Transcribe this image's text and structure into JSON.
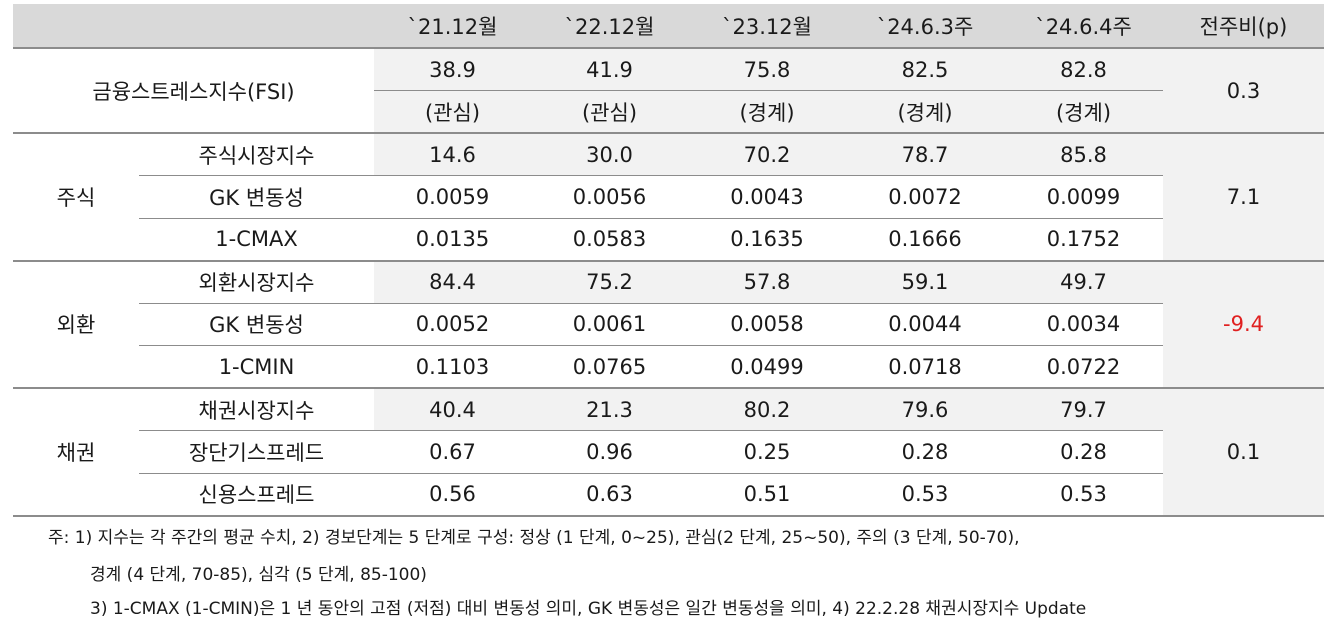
{
  "table": {
    "columns": [
      "",
      "`21.12월",
      "`22.12월",
      "`23.12월",
      "`24.6.3주",
      "`24.6.4주",
      "전주비(p)"
    ],
    "fsi": {
      "label": "금융스트레스지수(FSI)",
      "values": [
        "38.9",
        "41.9",
        "75.8",
        "82.5",
        "82.8"
      ],
      "levels": [
        "(관심)",
        "(관심)",
        "(경계)",
        "(경계)",
        "(경계)"
      ],
      "change": "0.3"
    },
    "groups": [
      {
        "name": "주식",
        "change": "7.1",
        "rows": [
          {
            "label": "주식시장지수",
            "values": [
              "14.6",
              "30.0",
              "70.2",
              "78.7",
              "85.8"
            ]
          },
          {
            "label": "GK 변동성",
            "values": [
              "0.0059",
              "0.0056",
              "0.0043",
              "0.0072",
              "0.0099"
            ]
          },
          {
            "label": "1-CMAX",
            "values": [
              "0.0135",
              "0.0583",
              "0.1635",
              "0.1666",
              "0.1752"
            ]
          }
        ]
      },
      {
        "name": "외환",
        "change": "-9.4",
        "change_color": "#e02020",
        "rows": [
          {
            "label": "외환시장지수",
            "values": [
              "84.4",
              "75.2",
              "57.8",
              "59.1",
              "49.7"
            ]
          },
          {
            "label": "GK 변동성",
            "values": [
              "0.0052",
              "0.0061",
              "0.0058",
              "0.0044",
              "0.0034"
            ]
          },
          {
            "label": "1-CMIN",
            "values": [
              "0.1103",
              "0.0765",
              "0.0499",
              "0.0718",
              "0.0722"
            ]
          }
        ]
      },
      {
        "name": "채권",
        "change": "0.1",
        "rows": [
          {
            "label": "채권시장지수",
            "values": [
              "40.4",
              "21.3",
              "80.2",
              "79.6",
              "79.7"
            ]
          },
          {
            "label": "장단기스프레드",
            "values": [
              "0.67",
              "0.96",
              "0.25",
              "0.28",
              "0.28"
            ]
          },
          {
            "label": "신용스프레드",
            "values": [
              "0.56",
              "0.63",
              "0.51",
              "0.53",
              "0.53"
            ]
          }
        ]
      }
    ]
  },
  "notes": [
    "주: 1) 지수는 각 주간의 평균 수치, 2) 경보단계는 5 단계로 구성: 정상 (1 단계, 0~25), 관심(2 단계, 25~50), 주의 (3 단계, 50-70),",
    "경계 (4 단계, 70-85), 심각 (5 단계, 85-100)",
    "3) 1-CMAX (1-CMIN)은 1 년 동안의 고점 (저점) 대비 변동성 의미, GK 변동성은 일간 변동성을 의미, 4) 22.2.28 채권시장지수 Update"
  ]
}
